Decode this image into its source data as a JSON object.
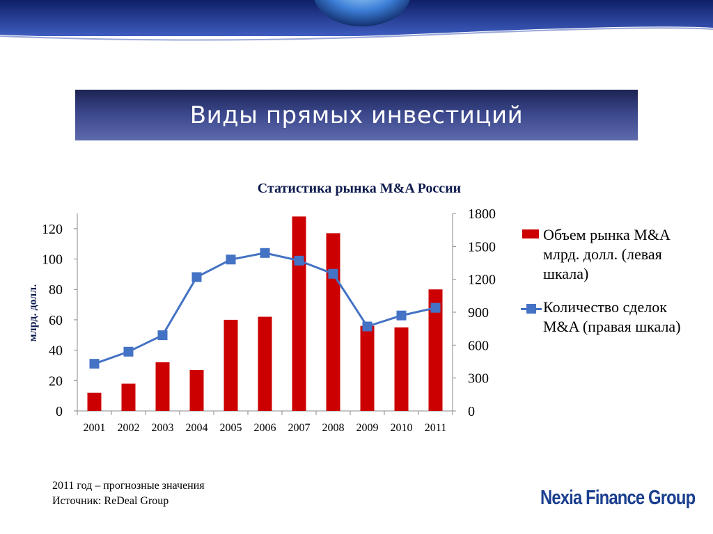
{
  "slide": {
    "title": "Виды прямых инвестиций",
    "footnote_lines": [
      "2011 год – прогнозные значения",
      "Источник: ReDeal Group"
    ],
    "logo": "Nexia Finance Group"
  },
  "colors": {
    "bar": "#cc0000",
    "line": "#4472c4",
    "title_bar": "#2b3470",
    "logo": "#1b3f8f"
  },
  "chart_data": {
    "type": "bar",
    "title": "Статистика рынка M&A России",
    "categories": [
      "2001",
      "2002",
      "2003",
      "2004",
      "2005",
      "2006",
      "2007",
      "2008",
      "2009",
      "2010",
      "2011"
    ],
    "ylabel": "млрд. долл.",
    "ylim": [
      0,
      130
    ],
    "y_ticks": [
      0,
      20,
      40,
      60,
      80,
      100,
      120
    ],
    "y2lim": [
      0,
      1800
    ],
    "y2_ticks": [
      0,
      300,
      600,
      900,
      1200,
      1500,
      1800
    ],
    "grid": false,
    "legend_position": "right",
    "series": [
      {
        "name": "Объем рынка M&A млрд. долл. (левая шкала)",
        "type": "bar",
        "axis": "left",
        "values": [
          12,
          18,
          32,
          27,
          60,
          62,
          128,
          117,
          56,
          55,
          80
        ]
      },
      {
        "name": "Количество сделок M&A (правая шкала)",
        "type": "line",
        "axis": "right",
        "values": [
          430,
          540,
          690,
          1220,
          1380,
          1440,
          1370,
          1250,
          770,
          870,
          940
        ]
      }
    ]
  }
}
